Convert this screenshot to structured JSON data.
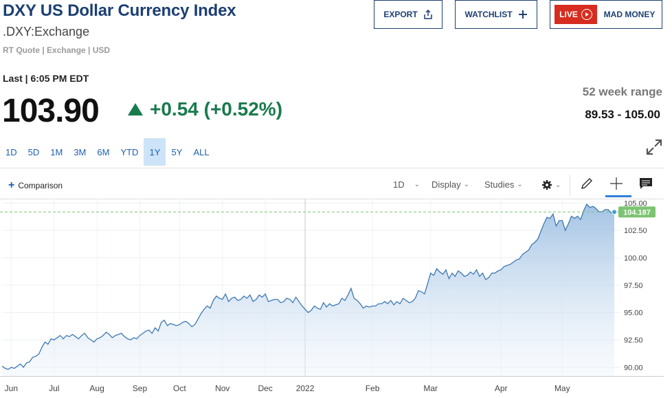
{
  "header": {
    "title": "DXY US Dollar Currency Index",
    "symbol": ".DXY:Exchange",
    "meta": "RT Quote | Exchange | USD"
  },
  "buttons": {
    "export": "EXPORT",
    "watchlist": "WATCHLIST",
    "live": "LIVE",
    "mad_money": "MAD MONEY"
  },
  "quote": {
    "last_label": "Last | 6:05 PM EDT",
    "price": "103.90",
    "change": "+0.54 (+0.52%)",
    "range_label": "52 week range",
    "range_value": "89.53 - 105.00"
  },
  "periods": [
    {
      "label": "1D",
      "active": false
    },
    {
      "label": "5D",
      "active": false
    },
    {
      "label": "1M",
      "active": false
    },
    {
      "label": "3M",
      "active": false
    },
    {
      "label": "6M",
      "active": false
    },
    {
      "label": "YTD",
      "active": false
    },
    {
      "label": "1Y",
      "active": true
    },
    {
      "label": "5Y",
      "active": false
    },
    {
      "label": "ALL",
      "active": false
    }
  ],
  "toolbar": {
    "comparison": "Comparison",
    "interval": "1D",
    "display": "Display",
    "studies": "Studies"
  },
  "colors": {
    "title": "#1c3f73",
    "positive": "#197a4d",
    "live_red": "#d62d20",
    "line": "#3d78b3",
    "last_badge": "#7cc471"
  },
  "chart_data": {
    "type": "area",
    "ylim": [
      89.2,
      105.4
    ],
    "y_ticks": [
      "105.00",
      "102.50",
      "100.00",
      "97.50",
      "95.00",
      "92.50",
      "90.00"
    ],
    "x_labels": [
      "Jun",
      "Jul",
      "Aug",
      "Sep",
      "Oct",
      "Nov",
      "Dec",
      "2022",
      "Feb",
      "Mar",
      "Apr",
      "May"
    ],
    "last_value_label": "104.187",
    "last_value": 104.187,
    "grid": true,
    "series": [
      {
        "values": [
          90.1,
          89.9,
          89.8,
          90.0,
          89.9,
          90.1,
          90.3,
          90.0,
          90.4,
          90.5,
          90.9,
          91.0,
          91.2,
          91.8,
          92.3,
          92.1,
          92.6,
          92.5,
          92.7,
          92.9,
          92.6,
          92.9,
          92.8,
          93.0,
          92.8,
          92.6,
          92.9,
          93.1,
          92.7,
          92.5,
          92.3,
          92.6,
          92.7,
          92.9,
          93.2,
          93.0,
          92.7,
          92.9,
          93.0,
          93.1,
          92.8,
          92.6,
          92.5,
          92.7,
          92.6,
          92.9,
          93.1,
          93.3,
          93.4,
          93.1,
          93.6,
          93.3,
          94.1,
          94.3,
          93.8,
          94.0,
          93.9,
          93.8,
          93.9,
          94.1,
          94.2,
          94.0,
          93.7,
          93.9,
          94.4,
          94.9,
          95.3,
          95.6,
          95.4,
          96.1,
          96.5,
          96.3,
          96.2,
          96.7,
          96.0,
          96.3,
          96.4,
          96.1,
          96.2,
          96.5,
          96.3,
          96.6,
          96.0,
          96.2,
          96.6,
          96.4,
          96.7,
          96.0,
          96.1,
          96.2,
          96.2,
          95.9,
          96.0,
          96.3,
          96.2,
          95.9,
          96.4,
          96.0,
          95.6,
          95.3,
          95.0,
          95.2,
          95.6,
          95.4,
          95.3,
          95.9,
          95.5,
          95.8,
          95.6,
          95.7,
          95.8,
          96.3,
          96.1,
          96.6,
          97.2,
          96.3,
          96.1,
          95.8,
          95.4,
          95.6,
          95.5,
          95.6,
          95.6,
          95.8,
          95.8,
          96.0,
          95.8,
          96.1,
          95.7,
          96.0,
          95.8,
          96.3,
          96.1,
          95.9,
          96.0,
          96.3,
          97.0,
          96.9,
          96.7,
          97.6,
          98.6,
          98.4,
          99.0,
          98.7,
          98.5,
          98.9,
          98.1,
          98.6,
          98.3,
          98.8,
          98.6,
          98.3,
          98.4,
          98.7,
          98.5,
          98.9,
          98.3,
          98.6,
          98.0,
          98.2,
          98.6,
          98.6,
          98.8,
          98.9,
          99.2,
          99.3,
          99.4,
          99.6,
          99.8,
          99.9,
          100.3,
          100.5,
          100.7,
          101.2,
          101.4,
          101.7,
          102.4,
          103.1,
          103.7,
          103.6,
          104.0,
          102.9,
          103.4,
          103.4,
          102.5,
          103.1,
          103.8,
          103.6,
          103.8,
          103.5,
          104.3,
          104.9,
          104.6,
          104.7,
          104.5,
          104.2,
          104.2,
          104.4,
          104.4,
          104.1,
          104.2
        ]
      }
    ]
  }
}
